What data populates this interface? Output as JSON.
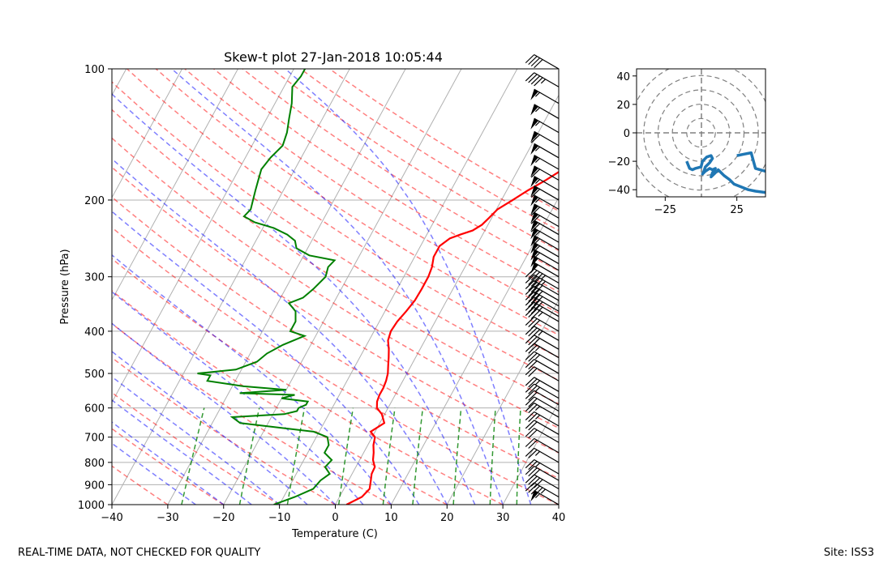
{
  "chart_data": {
    "type": "skew-t",
    "title": "Skew-t plot 27-Jan-2018 10:05:44",
    "xlabel": "Temperature (C)",
    "ylabel": "Pressure (hPa)",
    "xlim": [
      -40,
      40
    ],
    "ylim": [
      1000,
      100
    ],
    "xticks": [
      "−40",
      "−30",
      "−20",
      "−10",
      "0",
      "10",
      "20",
      "30",
      "40"
    ],
    "xtick_values": [
      -40,
      -30,
      -20,
      -10,
      0,
      10,
      20,
      30,
      40
    ],
    "yticks": [
      "100",
      "200",
      "300",
      "400",
      "500",
      "600",
      "700",
      "800",
      "900",
      "1000"
    ],
    "ytick_values": [
      100,
      200,
      300,
      400,
      500,
      600,
      700,
      800,
      900,
      1000
    ],
    "series": [
      {
        "name": "temperature",
        "color": "#ff0000",
        "points": [
          [
            1000,
            2.0
          ],
          [
            960,
            4.0
          ],
          [
            920,
            4.6
          ],
          [
            880,
            4.0
          ],
          [
            850,
            3.5
          ],
          [
            820,
            3.4
          ],
          [
            790,
            2.4
          ],
          [
            760,
            1.8
          ],
          [
            730,
            1.0
          ],
          [
            700,
            0.5
          ],
          [
            680,
            -0.8
          ],
          [
            650,
            0.8
          ],
          [
            620,
            -0.5
          ],
          [
            600,
            -2.0
          ],
          [
            580,
            -2.6
          ],
          [
            560,
            -2.8
          ],
          [
            540,
            -2.8
          ],
          [
            520,
            -3.0
          ],
          [
            500,
            -3.4
          ],
          [
            480,
            -4.1
          ],
          [
            460,
            -4.8
          ],
          [
            440,
            -5.6
          ],
          [
            420,
            -6.6
          ],
          [
            400,
            -7.0
          ],
          [
            380,
            -6.8
          ],
          [
            360,
            -6.2
          ],
          [
            340,
            -5.7
          ],
          [
            320,
            -5.6
          ],
          [
            300,
            -5.6
          ],
          [
            285,
            -5.9
          ],
          [
            270,
            -6.6
          ],
          [
            255,
            -6.6
          ],
          [
            245,
            -5.5
          ],
          [
            240,
            -4.0
          ],
          [
            235,
            -2.2
          ],
          [
            228,
            -1.1
          ],
          [
            220,
            -0.5
          ],
          [
            210,
            0.2
          ],
          [
            200,
            2.0
          ],
          [
            190,
            3.8
          ],
          [
            180,
            6.0
          ],
          [
            170,
            8.0
          ],
          [
            160,
            10.0
          ],
          [
            150,
            12.0
          ],
          [
            140,
            14.0
          ],
          [
            130,
            15.5
          ],
          [
            120,
            17.2
          ],
          [
            110,
            18.2
          ],
          [
            104,
            19.5
          ],
          [
            100,
            21.4
          ]
        ]
      },
      {
        "name": "dewpoint",
        "color": "#008000",
        "points": [
          [
            1000,
            -11.0
          ],
          [
            960,
            -8.0
          ],
          [
            920,
            -5.5
          ],
          [
            880,
            -5.0
          ],
          [
            850,
            -4.0
          ],
          [
            820,
            -5.5
          ],
          [
            790,
            -5.0
          ],
          [
            760,
            -7.0
          ],
          [
            730,
            -7.0
          ],
          [
            700,
            -8.0
          ],
          [
            680,
            -11.0
          ],
          [
            650,
            -25.0
          ],
          [
            630,
            -27.0
          ],
          [
            620,
            -18.0
          ],
          [
            610,
            -16.0
          ],
          [
            600,
            -16.0
          ],
          [
            590,
            -15.0
          ],
          [
            580,
            -15.0
          ],
          [
            570,
            -20.0
          ],
          [
            560,
            -18.0
          ],
          [
            555,
            -28.0
          ],
          [
            545,
            -20.0
          ],
          [
            535,
            -28.0
          ],
          [
            520,
            -35.0
          ],
          [
            505,
            -35.0
          ],
          [
            500,
            -37.5
          ],
          [
            490,
            -31.0
          ],
          [
            470,
            -28.0
          ],
          [
            450,
            -27.0
          ],
          [
            430,
            -25.0
          ],
          [
            410,
            -22.0
          ],
          [
            400,
            -25.0
          ],
          [
            380,
            -25.0
          ],
          [
            360,
            -26.0
          ],
          [
            345,
            -28.0
          ],
          [
            335,
            -26.0
          ],
          [
            320,
            -25.0
          ],
          [
            300,
            -24.0
          ],
          [
            285,
            -24.5
          ],
          [
            275,
            -24.0
          ],
          [
            268,
            -29.0
          ],
          [
            258,
            -32.0
          ],
          [
            248,
            -33.0
          ],
          [
            240,
            -35.0
          ],
          [
            232,
            -38.0
          ],
          [
            225,
            -42.0
          ],
          [
            218,
            -44.5
          ],
          [
            210,
            -44.0
          ],
          [
            200,
            -44.5
          ],
          [
            190,
            -45.0
          ],
          [
            180,
            -45.5
          ],
          [
            170,
            -46.0
          ],
          [
            160,
            -45.5
          ],
          [
            150,
            -44.5
          ],
          [
            140,
            -45.0
          ],
          [
            130,
            -46.0
          ],
          [
            120,
            -47.0
          ],
          [
            110,
            -48.5
          ],
          [
            104,
            -48.0
          ],
          [
            100,
            -48.0
          ]
        ]
      }
    ],
    "wind_barbs": {
      "pressures": [
        1000,
        960,
        920,
        880,
        850,
        800,
        760,
        720,
        690,
        660,
        630,
        610,
        590,
        570,
        550,
        520,
        500,
        480,
        460,
        440,
        420,
        400,
        380,
        370,
        360,
        350,
        340,
        330,
        320,
        310,
        300,
        290,
        280,
        270,
        260,
        250,
        240,
        230,
        220,
        210,
        200,
        190,
        180,
        170,
        160,
        150,
        140,
        130,
        120,
        110,
        100
      ],
      "speed_kt": [
        55,
        45,
        40,
        30,
        25,
        25,
        20,
        20,
        20,
        25,
        25,
        20,
        20,
        25,
        25,
        20,
        20,
        25,
        25,
        30,
        35,
        30,
        35,
        35,
        40,
        40,
        40,
        40,
        45,
        45,
        50,
        50,
        55,
        55,
        55,
        55,
        60,
        60,
        60,
        55,
        60,
        55,
        60,
        55,
        55,
        60,
        55,
        55,
        55,
        45,
        40
      ],
      "direction_deg": [
        300,
        300,
        300,
        300,
        300,
        300,
        300,
        300,
        300,
        300,
        300,
        300,
        300,
        300,
        300,
        300,
        300,
        300,
        300,
        300,
        300,
        300,
        300,
        300,
        300,
        300,
        300,
        300,
        300,
        300,
        300,
        300,
        300,
        300,
        300,
        300,
        300,
        300,
        300,
        300,
        300,
        300,
        300,
        300,
        300,
        300,
        300,
        300,
        300,
        300,
        300
      ]
    },
    "hodograph": {
      "xlim": [
        -45,
        45
      ],
      "ylim": [
        -45,
        45
      ],
      "xticks": [
        "−25",
        "25"
      ],
      "xtick_values": [
        -25,
        25
      ],
      "yticks": [
        "40",
        "20",
        "0",
        "−20",
        "−40"
      ],
      "ytick_values": [
        40,
        20,
        0,
        -20,
        -40
      ],
      "ring_radii": [
        10,
        20,
        30,
        40,
        50
      ],
      "trace_color": "#1f77b4",
      "trace": [
        [
          -10,
          -20
        ],
        [
          -8,
          -25
        ],
        [
          -6,
          -26
        ],
        [
          -4,
          -25
        ],
        [
          0,
          -24
        ],
        [
          1,
          -20
        ],
        [
          4,
          -17
        ],
        [
          7,
          -16
        ],
        [
          8,
          -18
        ],
        [
          6,
          -21
        ],
        [
          3,
          -24
        ],
        [
          2,
          -27
        ],
        [
          1,
          -29
        ],
        [
          3,
          -27
        ],
        [
          6,
          -25
        ],
        [
          8,
          -26
        ],
        [
          10,
          -25
        ],
        [
          8,
          -28
        ],
        [
          7,
          -31
        ],
        [
          10,
          -28
        ],
        [
          12,
          -26
        ],
        [
          16,
          -30
        ],
        [
          20,
          -33
        ],
        [
          23,
          -36
        ],
        [
          28,
          -38
        ],
        [
          33,
          -40
        ],
        [
          38,
          -41
        ],
        [
          45,
          -42
        ]
      ],
      "trace2": [
        [
          25,
          -16
        ],
        [
          30,
          -15
        ],
        [
          35,
          -14
        ],
        [
          38,
          -25
        ],
        [
          45,
          -27
        ]
      ]
    }
  },
  "footer": {
    "left_text": "REAL-TIME DATA, NOT CHECKED FOR QUALITY",
    "right_text": "Site: ISS3"
  }
}
